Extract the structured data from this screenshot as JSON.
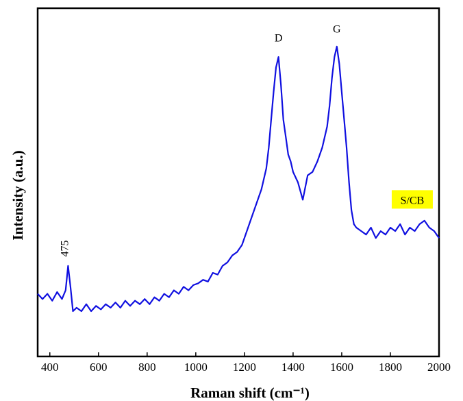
{
  "chart_data": {
    "type": "line",
    "x_label": "Raman shift (cm⁻¹)",
    "y_label": "Intensity (a.u.)",
    "xlim": [
      350,
      2000
    ],
    "xticks": [
      400,
      600,
      800,
      1000,
      1200,
      1400,
      1600,
      1800,
      2000
    ],
    "ylim": [
      0,
      100
    ],
    "x": [
      350,
      370,
      390,
      410,
      430,
      450,
      465,
      475,
      485,
      495,
      510,
      530,
      550,
      570,
      590,
      610,
      630,
      650,
      670,
      690,
      710,
      730,
      750,
      770,
      790,
      810,
      830,
      850,
      870,
      890,
      910,
      930,
      950,
      970,
      990,
      1010,
      1030,
      1050,
      1070,
      1090,
      1110,
      1130,
      1150,
      1170,
      1190,
      1210,
      1230,
      1250,
      1270,
      1290,
      1300,
      1310,
      1320,
      1330,
      1340,
      1350,
      1360,
      1370,
      1380,
      1390,
      1400,
      1420,
      1440,
      1460,
      1480,
      1500,
      1520,
      1540,
      1550,
      1560,
      1570,
      1580,
      1590,
      1600,
      1610,
      1620,
      1630,
      1640,
      1650,
      1660,
      1680,
      1700,
      1720,
      1740,
      1760,
      1780,
      1800,
      1820,
      1840,
      1860,
      1880,
      1900,
      1920,
      1940,
      1960,
      1980,
      2000
    ],
    "series": [
      {
        "name": "S/CB",
        "color": "#1010e0",
        "values": [
          18,
          16.5,
          18,
          16,
          18.5,
          16.5,
          19,
          26,
          20,
          13,
          14,
          13,
          15,
          13,
          14.5,
          13.5,
          15,
          14,
          15.5,
          14,
          16,
          14.5,
          16,
          15,
          16.5,
          15,
          17,
          16,
          18,
          17,
          19,
          18,
          20,
          19,
          20.5,
          21,
          22,
          21.5,
          24,
          23.5,
          26,
          27,
          29,
          30,
          32,
          36,
          40,
          44,
          48,
          54,
          60,
          68,
          76,
          83,
          86,
          78,
          68,
          63,
          58,
          56,
          53,
          50,
          45,
          52,
          53,
          56,
          60,
          66,
          72,
          80,
          86,
          89,
          84,
          76,
          68,
          60,
          50,
          42,
          38,
          37,
          36,
          35,
          37,
          34,
          36,
          35,
          37,
          36,
          38,
          35,
          37,
          36,
          38,
          39,
          37,
          36,
          34
        ]
      }
    ],
    "annotations": [
      {
        "text": "D",
        "x": 1340,
        "y": 90.5
      },
      {
        "text": "G",
        "x": 1580,
        "y": 93
      },
      {
        "text": "475",
        "x": 475,
        "y": 31
      }
    ],
    "legend_box": {
      "text": "S/CB",
      "x": 1890,
      "y": 45,
      "color": "#ffff00"
    }
  }
}
